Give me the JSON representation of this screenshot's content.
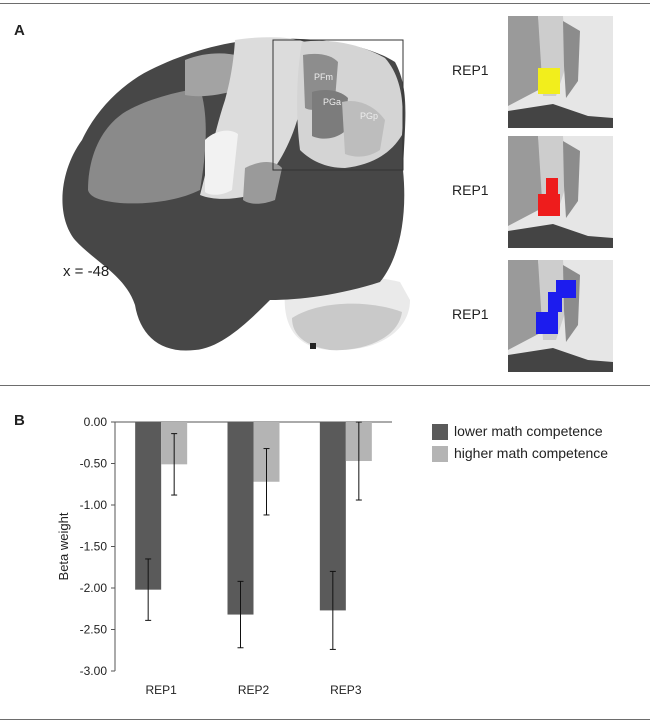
{
  "panels": {
    "a_letter": "A",
    "b_letter": "B"
  },
  "brain": {
    "coordinate_label": "x = -48",
    "region_labels": [
      "PFm",
      "PGa",
      "PGp"
    ],
    "inset_labels": [
      "REP1",
      "REP1",
      "REP1"
    ],
    "inset_highlight_colors": [
      "#f2ee1c",
      "#ee1c1c",
      "#1c1cee"
    ]
  },
  "colors": {
    "lower": "#5a5a5a",
    "higher": "#b4b4b4",
    "brain_dark": "#4a4a4a",
    "brain_mid": "#8c8c8c",
    "brain_light": "#d9d9d9"
  },
  "chart_data": {
    "type": "bar",
    "categories": [
      "REP1",
      "REP2",
      "REP3"
    ],
    "series": [
      {
        "name": "lower math competence",
        "values": [
          -2.02,
          -2.32,
          -2.27
        ],
        "error": [
          0.37,
          0.4,
          0.47
        ]
      },
      {
        "name": "higher math competence",
        "values": [
          -0.51,
          -0.72,
          -0.47
        ],
        "error": [
          0.37,
          0.4,
          0.47
        ]
      }
    ],
    "ylabel": "Beta weight",
    "ylim": [
      -3.0,
      0.0
    ],
    "yticks": [
      "0.00",
      "-0.50",
      "-1.00",
      "-1.50",
      "-2.00",
      "-2.50",
      "-3.00"
    ],
    "legend_position": "top-right",
    "grid": false
  }
}
